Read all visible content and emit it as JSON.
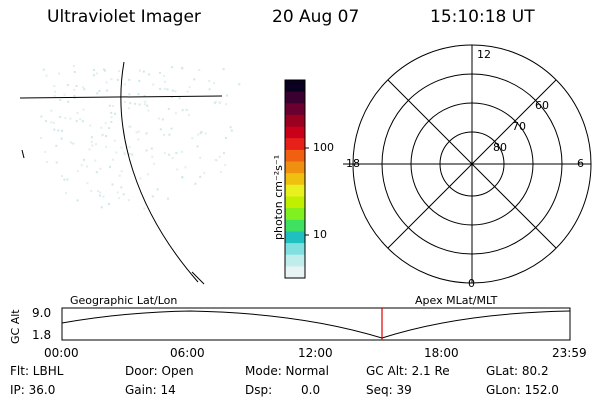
{
  "header": {
    "instrument": "Ultraviolet Imager",
    "date": "20 Aug 07",
    "time": "15:10:18 UT"
  },
  "colorbar": {
    "unit_label": "photon cm⁻²s⁻¹",
    "tick_labels": [
      "100",
      "10"
    ],
    "colors": [
      "#0a0020",
      "#3a0030",
      "#6a0030",
      "#9a0020",
      "#c8001a",
      "#e8201a",
      "#f06010",
      "#f09010",
      "#f0c010",
      "#e8f020",
      "#c0f000",
      "#80f020",
      "#40e060",
      "#20c0c0",
      "#80e0e0",
      "#c0ecec",
      "#e8f4f4"
    ]
  },
  "polar_plot": {
    "mlt_labels": [
      "12",
      "18",
      "6",
      "0"
    ],
    "lat_labels": [
      "60",
      "70",
      "80"
    ]
  },
  "timeline": {
    "left_label": "Geographic Lat/Lon",
    "right_label": "Apex MLat/MLT",
    "y_axis_label": "GC Alt",
    "y_ticks": [
      "9.0",
      "1.8"
    ],
    "x_ticks": [
      "00:00",
      "06:00",
      "12:00",
      "18:00",
      "23:59"
    ],
    "marker_color": "#e00000"
  },
  "info": {
    "flt": "Flt: LBHL",
    "ip": "IP: 36.0",
    "door": "Door: Open",
    "gain": "Gain: 14",
    "mode": "Mode: Normal",
    "dsp_label": "Dsp:",
    "dsp_value": "0.0",
    "gc_alt": "GC Alt: 2.1 Re",
    "seq": "Seq: 39",
    "glat": "GLat:  80.2",
    "glon": "GLon: 152.0"
  }
}
